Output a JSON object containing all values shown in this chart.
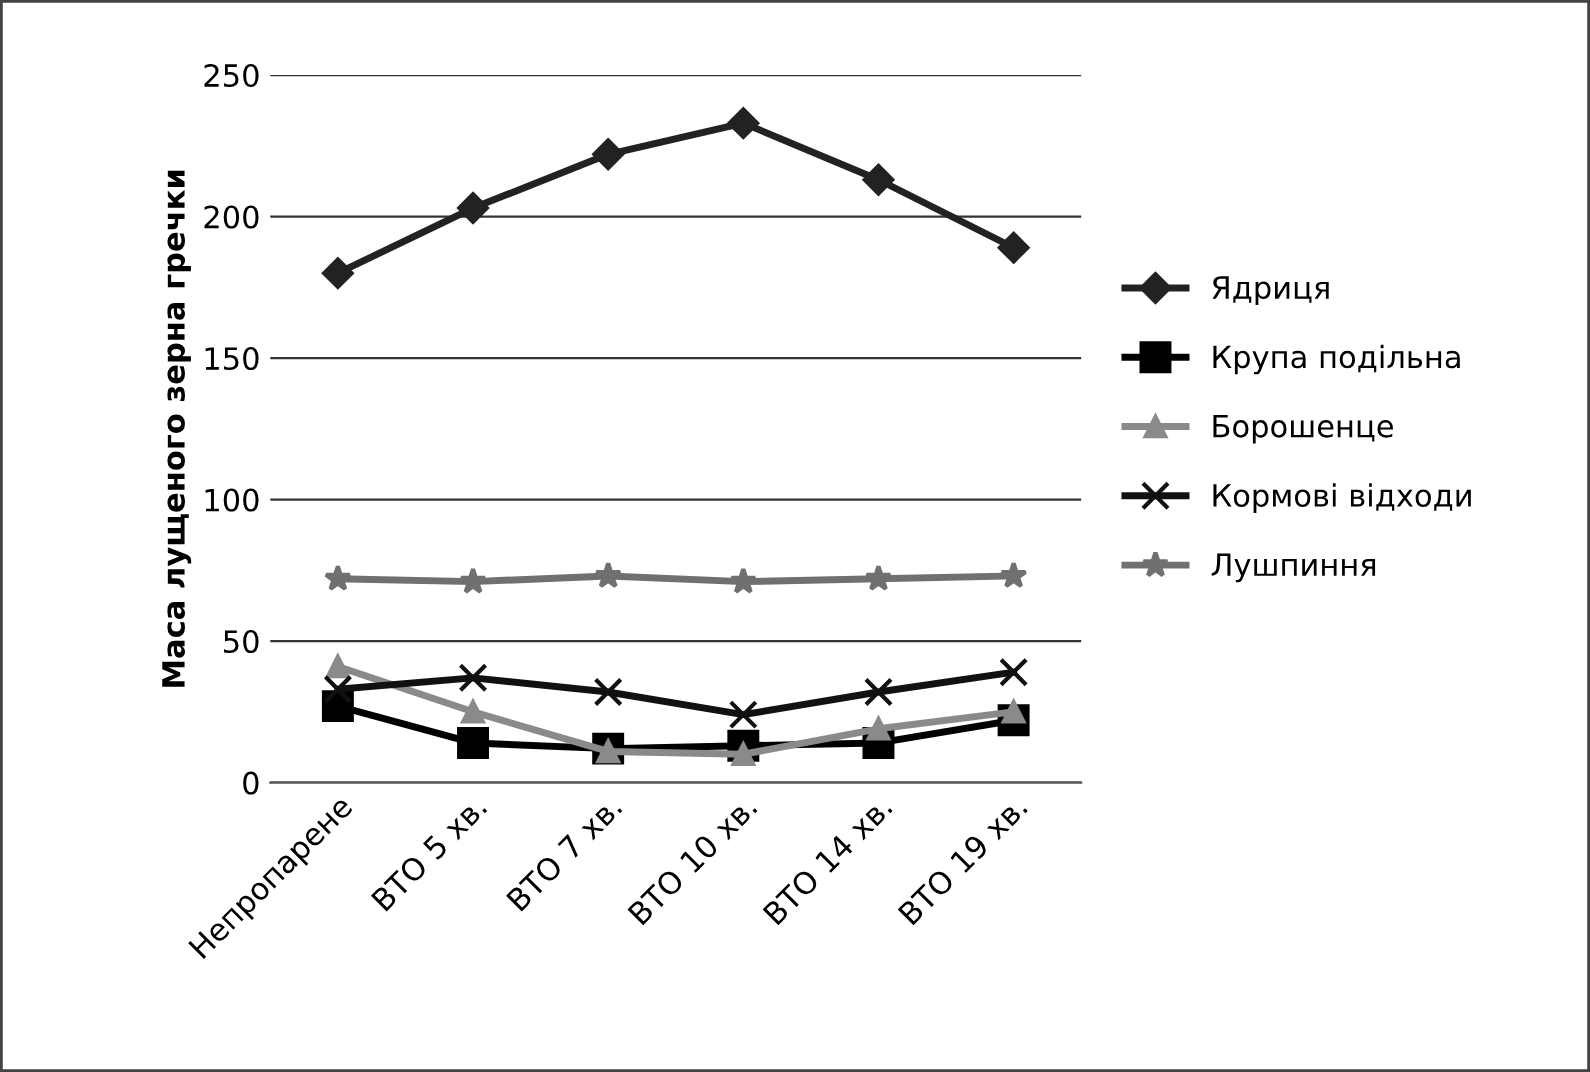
{
  "chart_data": {
    "type": "line",
    "ylabel": "Маса лущеного зерна гречки",
    "categories": [
      "Непропарене",
      "ВТО 5 хв.",
      "ВТО 7 хв.",
      "ВТО 10 хв.",
      "ВТО 14 хв.",
      "ВТО 19 хв."
    ],
    "series": [
      {
        "name": "Ядриця",
        "color": "#222222",
        "marker": "diamond",
        "values": [
          180,
          203,
          222,
          233,
          213,
          189
        ]
      },
      {
        "name": "Крупа подільна",
        "color": "#000000",
        "marker": "square",
        "values": [
          27,
          14,
          12,
          13,
          14,
          22
        ]
      },
      {
        "name": "Борошенце",
        "color": "#8a8a8a",
        "marker": "triangle",
        "values": [
          41,
          25,
          11,
          10,
          19,
          25
        ]
      },
      {
        "name": "Кормові відходи",
        "color": "#111111",
        "marker": "cross",
        "values": [
          33,
          37,
          32,
          24,
          32,
          39
        ]
      },
      {
        "name": "Лушпиння",
        "color": "#707070",
        "marker": "star",
        "values": [
          72,
          71,
          73,
          71,
          72,
          73
        ]
      }
    ],
    "ylim": [
      0,
      250
    ],
    "yticks": [
      0,
      50,
      100,
      150,
      200,
      250
    ],
    "grid": "y",
    "legend": "right",
    "line_style": "solid"
  }
}
